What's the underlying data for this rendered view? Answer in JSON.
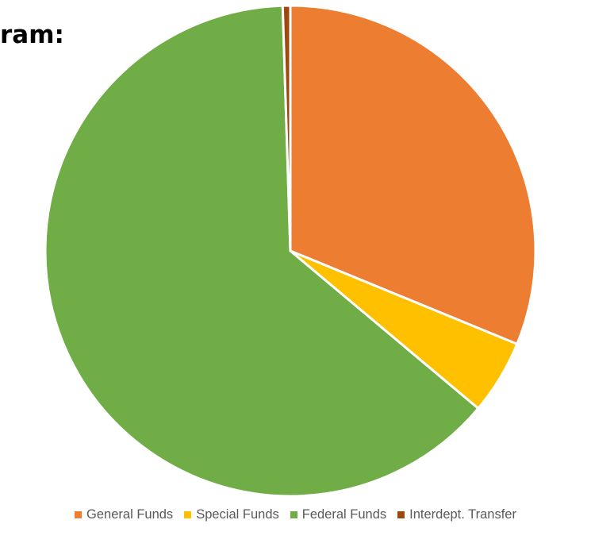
{
  "title_fragment": "ram:",
  "chart_data": {
    "type": "pie",
    "title": "ram:",
    "start_angle_deg": 0,
    "direction": "clockwise",
    "slices": [
      {
        "label": "General Funds",
        "value": 31.2,
        "color": "#ED7D31"
      },
      {
        "label": "Special Funds",
        "value": 4.9,
        "color": "#FFC000"
      },
      {
        "label": "Federal Funds",
        "value": 63.4,
        "color": "#70AD47"
      },
      {
        "label": "Interdept. Transfer",
        "value": 0.5,
        "color": "#9E480E"
      }
    ],
    "legend_position": "bottom"
  }
}
